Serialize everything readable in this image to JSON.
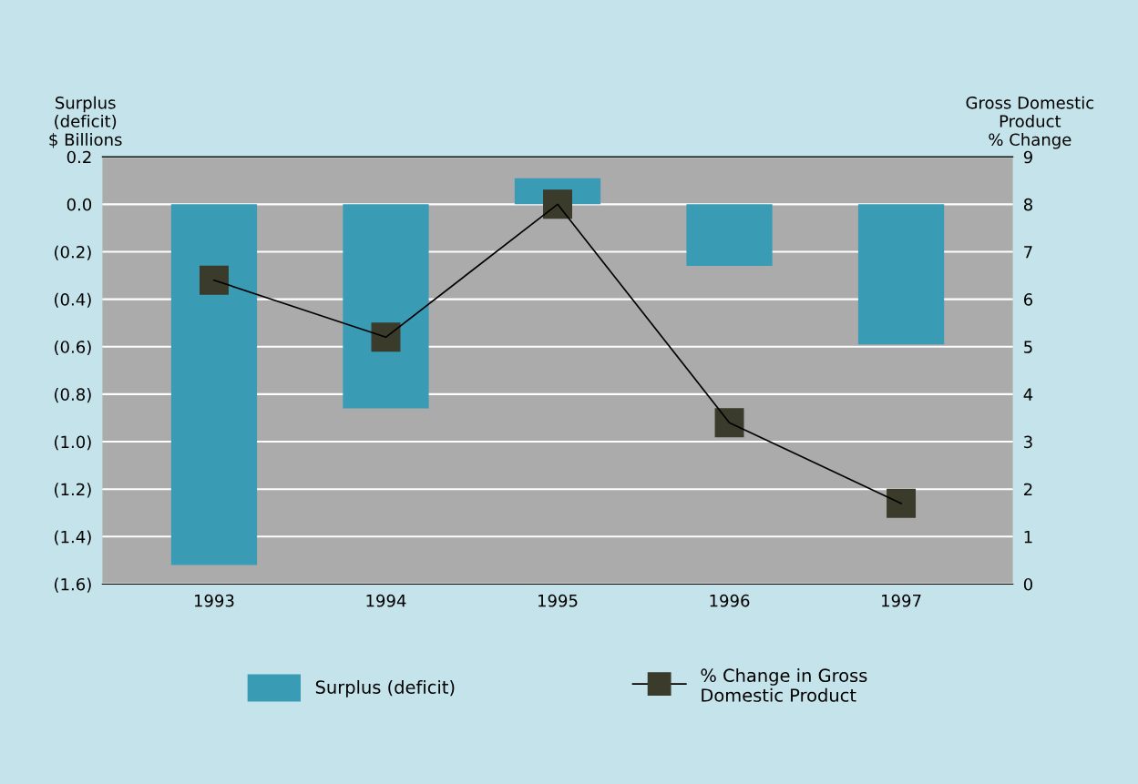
{
  "chart_data": {
    "type": "bar",
    "ylabel": "Surplus\n(deficit)\n$ Billions",
    "y2label": "Gross Domestic\nProduct\n% Change",
    "categories": [
      "1993",
      "1994",
      "1995",
      "1996",
      "1997"
    ],
    "series": [
      {
        "name": "Surplus (deficit)",
        "color": "#3a9bb5",
        "values": [
          -1.52,
          -0.86,
          0.11,
          -0.26,
          -0.59
        ]
      },
      {
        "name": "% Change in Gross\nDomestic Product",
        "type": "line",
        "axis": "y2",
        "color": "#3b3b2c",
        "marker": "square",
        "values": [
          6.4,
          5.2,
          8.0,
          3.4,
          1.7
        ]
      }
    ],
    "ylim": [
      -1.6,
      0.2
    ],
    "yticks": [
      {
        "value": 0.2,
        "label": "0.2"
      },
      {
        "value": 0,
        "label": "0.0"
      },
      {
        "value": -0.2,
        "label": "(0.2)"
      },
      {
        "value": -0.4,
        "label": "(0.4)"
      },
      {
        "value": -0.6,
        "label": "(0.6)"
      },
      {
        "value": -0.8,
        "label": "(0.8)"
      },
      {
        "value": -1.0,
        "label": "(1.0)"
      },
      {
        "value": -1.2,
        "label": "(1.2)"
      },
      {
        "value": -1.4,
        "label": "(1.4)"
      },
      {
        "value": -1.6,
        "label": "(1.6)"
      }
    ],
    "y2lim": [
      0,
      9
    ],
    "y2ticks": [
      0,
      1,
      2,
      3,
      4,
      5,
      6,
      7,
      8,
      9
    ],
    "grid": "y",
    "legend": "bottom"
  }
}
